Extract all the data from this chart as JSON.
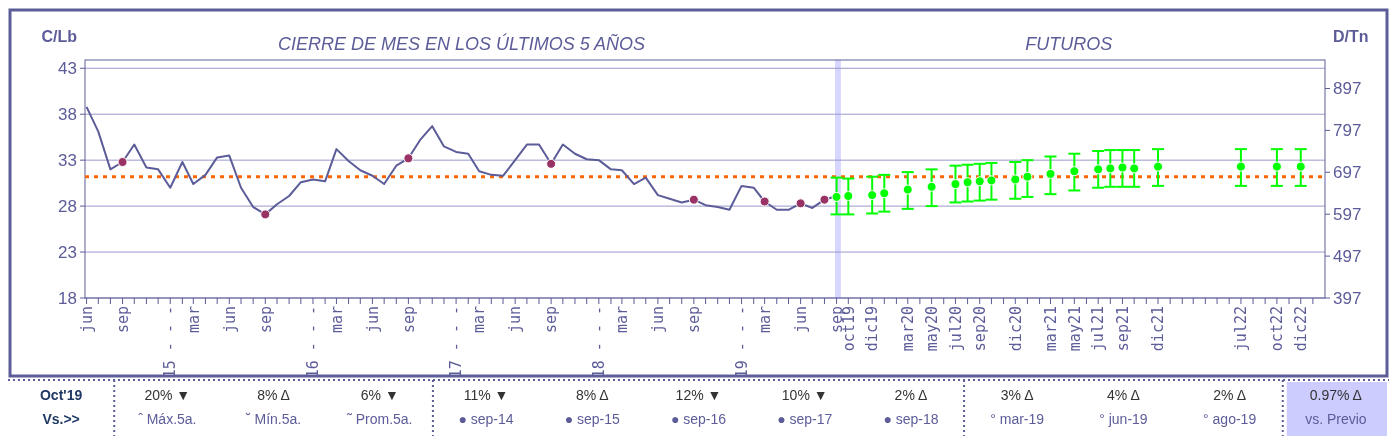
{
  "chart_data": {
    "type": "line",
    "title": "CIERRE DE MES EN LOS ÚLTIMOS 5 AÑOS",
    "subtitle": "FUTUROS",
    "ylabel": "C/Lb",
    "y2label": "D/Tn",
    "xlim": [
      "2014-05-28",
      "2023-02"
    ],
    "ylim": [
      18,
      43.9
    ],
    "yticks": [
      18,
      23,
      28,
      33,
      38,
      43
    ],
    "y2lim": [
      397,
      965
    ],
    "y2ticks": [
      397,
      497,
      597,
      697,
      797,
      897
    ],
    "grid": "y",
    "xticks": [
      {
        "value": "2014-06",
        "label": "jun"
      },
      {
        "value": "2014-07",
        "label": null
      },
      {
        "value": "2014-08",
        "label": null
      },
      {
        "value": "2014-09",
        "label": "sep"
      },
      {
        "value": "2014-10",
        "label": null
      },
      {
        "value": "2014-11",
        "label": null
      },
      {
        "value": "2014-12",
        "label": null
      },
      {
        "value": "2015-01",
        "label": "15 - - -"
      },
      {
        "value": "2015-02",
        "label": null
      },
      {
        "value": "2015-03",
        "label": "mar"
      },
      {
        "value": "2015-04",
        "label": null
      },
      {
        "value": "2015-05",
        "label": null
      },
      {
        "value": "2015-06",
        "label": "jun"
      },
      {
        "value": "2015-07",
        "label": null
      },
      {
        "value": "2015-08",
        "label": null
      },
      {
        "value": "2015-09",
        "label": "sep"
      },
      {
        "value": "2015-10",
        "label": null
      },
      {
        "value": "2015-11",
        "label": null
      },
      {
        "value": "2015-12",
        "label": null
      },
      {
        "value": "2016-01",
        "label": "16 - - -"
      },
      {
        "value": "2016-02",
        "label": null
      },
      {
        "value": "2016-03",
        "label": "mar"
      },
      {
        "value": "2016-04",
        "label": null
      },
      {
        "value": "2016-05",
        "label": null
      },
      {
        "value": "2016-06",
        "label": "jun"
      },
      {
        "value": "2016-07",
        "label": null
      },
      {
        "value": "2016-08",
        "label": null
      },
      {
        "value": "2016-09",
        "label": "sep"
      },
      {
        "value": "2016-10",
        "label": null
      },
      {
        "value": "2016-11",
        "label": null
      },
      {
        "value": "2016-12",
        "label": null
      },
      {
        "value": "2017-01",
        "label": "17 - - -"
      },
      {
        "value": "2017-02",
        "label": null
      },
      {
        "value": "2017-03",
        "label": "mar"
      },
      {
        "value": "2017-04",
        "label": null
      },
      {
        "value": "2017-05",
        "label": null
      },
      {
        "value": "2017-06",
        "label": "jun"
      },
      {
        "value": "2017-07",
        "label": null
      },
      {
        "value": "2017-08",
        "label": null
      },
      {
        "value": "2017-09",
        "label": "sep"
      },
      {
        "value": "2017-10",
        "label": null
      },
      {
        "value": "2017-11",
        "label": null
      },
      {
        "value": "2017-12",
        "label": null
      },
      {
        "value": "2018-01",
        "label": "18 - - -"
      },
      {
        "value": "2018-02",
        "label": null
      },
      {
        "value": "2018-03",
        "label": "mar"
      },
      {
        "value": "2018-04",
        "label": null
      },
      {
        "value": "2018-05",
        "label": null
      },
      {
        "value": "2018-06",
        "label": "jun"
      },
      {
        "value": "2018-07",
        "label": null
      },
      {
        "value": "2018-08",
        "label": null
      },
      {
        "value": "2018-09",
        "label": "sep"
      },
      {
        "value": "2018-10",
        "label": null
      },
      {
        "value": "2018-11",
        "label": null
      },
      {
        "value": "2018-12",
        "label": null
      },
      {
        "value": "2019-01",
        "label": "19 - - -"
      },
      {
        "value": "2019-02",
        "label": null
      },
      {
        "value": "2019-03",
        "label": "mar"
      },
      {
        "value": "2019-04",
        "label": null
      },
      {
        "value": "2019-05",
        "label": null
      },
      {
        "value": "2019-06",
        "label": "jun"
      },
      {
        "value": "2019-07",
        "label": null
      },
      {
        "value": "2019-08",
        "label": null
      },
      {
        "value": "2019-09",
        "label": "sep"
      },
      {
        "value": "2019-10",
        "label": "oct19"
      },
      {
        "value": "2019-11",
        "label": null
      },
      {
        "value": "2019-12",
        "label": "dic19"
      },
      {
        "value": "2020-01",
        "label": null
      },
      {
        "value": "2020-02",
        "label": null
      },
      {
        "value": "2020-03",
        "label": "mar20"
      },
      {
        "value": "2020-04",
        "label": null
      },
      {
        "value": "2020-05",
        "label": "may20"
      },
      {
        "value": "2020-06",
        "label": null
      },
      {
        "value": "2020-07",
        "label": "jul20"
      },
      {
        "value": "2020-08",
        "label": null
      },
      {
        "value": "2020-09",
        "label": "sep20"
      },
      {
        "value": "2020-10",
        "label": null
      },
      {
        "value": "2020-11",
        "label": null
      },
      {
        "value": "2020-12",
        "label": "dic20"
      },
      {
        "value": "2021-01",
        "label": null
      },
      {
        "value": "2021-02",
        "label": null
      },
      {
        "value": "2021-03",
        "label": "mar21"
      },
      {
        "value": "2021-04",
        "label": null
      },
      {
        "value": "2021-05",
        "label": "may21"
      },
      {
        "value": "2021-06",
        "label": null
      },
      {
        "value": "2021-07",
        "label": "jul21"
      },
      {
        "value": "2021-08",
        "label": null
      },
      {
        "value": "2021-09",
        "label": "sep21"
      },
      {
        "value": "2021-10",
        "label": null
      },
      {
        "value": "2021-11",
        "label": null
      },
      {
        "value": "2021-12",
        "label": "dic21"
      },
      {
        "value": "2022-01",
        "label": null
      },
      {
        "value": "2022-02",
        "label": null
      },
      {
        "value": "2022-03",
        "label": null
      },
      {
        "value": "2022-04",
        "label": null
      },
      {
        "value": "2022-05",
        "label": null
      },
      {
        "value": "2022-06",
        "label": null
      },
      {
        "value": "2022-07",
        "label": "jul22"
      },
      {
        "value": "2022-08",
        "label": null
      },
      {
        "value": "2022-09",
        "label": null
      },
      {
        "value": "2022-10",
        "label": "oct22"
      },
      {
        "value": "2022-11",
        "label": null
      },
      {
        "value": "2022-12",
        "label": "dic22"
      },
      {
        "value": "2023-01",
        "label": null
      }
    ],
    "series": [
      {
        "color": "#5c5c99",
        "x": [
          "2014-06",
          "2014-07",
          "2014-08",
          "2014-09",
          "2014-10",
          "2014-11",
          "2014-12",
          "2015-01",
          "2015-02",
          "2015-03",
          "2015-04",
          "2015-05",
          "2015-06",
          "2015-07",
          "2015-08",
          "2015-09",
          "2015-10",
          "2015-11",
          "2015-12",
          "2016-01",
          "2016-02",
          "2016-03",
          "2016-04",
          "2016-05",
          "2016-06",
          "2016-07",
          "2016-08",
          "2016-09",
          "2016-10",
          "2016-11",
          "2016-12",
          "2017-01",
          "2017-02",
          "2017-03",
          "2017-04",
          "2017-05",
          "2017-06",
          "2017-07",
          "2017-08",
          "2017-09",
          "2017-10",
          "2017-11",
          "2017-12",
          "2018-01",
          "2018-02",
          "2018-03",
          "2018-04",
          "2018-05",
          "2018-06",
          "2018-07",
          "2018-08",
          "2018-09",
          "2018-10",
          "2018-11",
          "2018-12",
          "2019-01",
          "2019-02",
          "2019-03",
          "2019-04",
          "2019-05",
          "2019-06",
          "2019-07",
          "2019-08",
          "2019-09"
        ],
        "values": [
          38.8,
          36.1,
          32.0,
          32.8,
          34.7,
          32.2,
          32.0,
          30.0,
          32.8,
          30.4,
          31.4,
          33.3,
          33.5,
          30.0,
          27.9,
          27.1,
          28.2,
          29.1,
          30.6,
          30.9,
          30.7,
          34.2,
          32.9,
          31.9,
          31.3,
          30.4,
          32.4,
          33.2,
          35.2,
          36.7,
          34.5,
          33.9,
          33.7,
          31.8,
          31.4,
          31.3,
          33.0,
          34.7,
          34.7,
          32.6,
          34.7,
          33.7,
          33.1,
          33.0,
          32.0,
          31.9,
          30.4,
          31.1,
          29.2,
          28.8,
          28.4,
          28.7,
          28.1,
          27.9,
          27.6,
          30.2,
          30.0,
          28.5,
          27.6,
          27.6,
          28.3,
          27.8,
          28.7,
          29.1
        ]
      },
      {
        "type": "scatter",
        "color": "#993366",
        "marker": "circle",
        "x": [
          "2014-09",
          "2015-09",
          "2016-09",
          "2017-09",
          "2018-09",
          "2019-03",
          "2019-06",
          "2019-08"
        ],
        "values": [
          32.8,
          27.1,
          33.2,
          32.6,
          28.7,
          28.5,
          28.3,
          28.7
        ]
      },
      {
        "type": "scatter",
        "color": "#00ff00",
        "marker": "circle",
        "x": [
          "2019-09",
          "2019-10",
          "2019-12",
          "2020-01",
          "2020-03",
          "2020-05",
          "2020-07",
          "2020-08",
          "2020-09",
          "2020-10",
          "2020-12",
          "2021-01",
          "2021-03",
          "2021-05",
          "2021-07",
          "2021-08",
          "2021-09",
          "2021-10",
          "2021-12",
          "2022-07",
          "2022-10",
          "2022-12"
        ],
        "values": [
          29.0,
          29.1,
          29.2,
          29.4,
          29.8,
          30.1,
          30.4,
          30.6,
          30.7,
          30.8,
          30.9,
          31.2,
          31.5,
          31.8,
          32.0,
          32.1,
          32.2,
          32.1,
          32.3,
          32.3,
          32.3,
          32.3
        ],
        "errors": [
          [
            27.1,
            31.1
          ],
          [
            27.1,
            31.0
          ],
          [
            27.2,
            31.2
          ],
          [
            27.4,
            31.4
          ],
          [
            27.7,
            31.7
          ],
          [
            28.0,
            32.0
          ],
          [
            28.4,
            32.4
          ],
          [
            28.5,
            32.5
          ],
          [
            28.6,
            32.6
          ],
          [
            28.7,
            32.7
          ],
          [
            28.8,
            32.8
          ],
          [
            29.0,
            33.0
          ],
          [
            29.3,
            33.4
          ],
          [
            29.7,
            33.7
          ],
          [
            30.0,
            34.0
          ],
          [
            30.1,
            34.1
          ],
          [
            30.1,
            34.1
          ],
          [
            30.1,
            34.1
          ],
          [
            30.2,
            34.2
          ],
          [
            30.2,
            34.2
          ],
          [
            30.2,
            34.2
          ],
          [
            30.2,
            34.2
          ]
        ]
      }
    ],
    "ref_lines": [
      {
        "axis": "y",
        "value": 31.2,
        "color": "#ff6600",
        "line_style": "dotted"
      }
    ],
    "bands": [
      {
        "axis": "x",
        "from": "2019-08-28",
        "to": "2019-09-12",
        "color": "#ccccff"
      }
    ],
    "annotations": [
      "Oct'19",
      "Vs.>>",
      "20% ▼",
      "ˆ Máx.5a.",
      "8% Δ",
      "˘ Mín.5a.",
      "6% ▼",
      "˜ Prom.5a.",
      "11% ▼",
      "● sep-14",
      "8% Δ",
      "● sep-15",
      "12% ▼",
      "● sep-16",
      "10% ▼",
      "● sep-17",
      "2% Δ",
      "● sep-18",
      "3% Δ",
      "° mar-19",
      "4% Δ",
      "° jun-19",
      "2% Δ",
      "° ago-19",
      "0.97% Δ",
      "vs. Previo"
    ]
  }
}
